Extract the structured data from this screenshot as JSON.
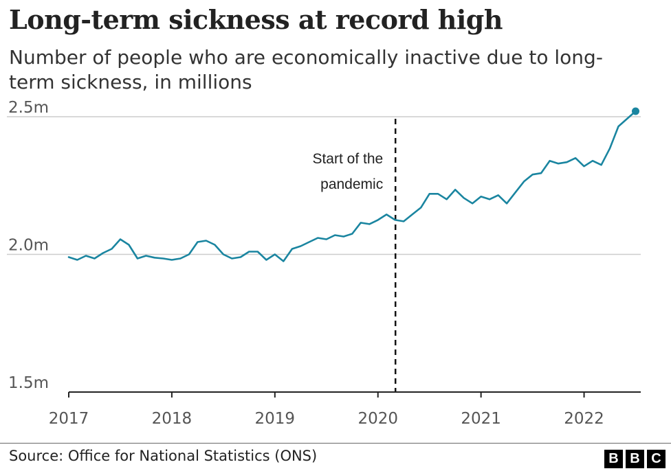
{
  "header": {
    "title": "Long-term sickness at record high",
    "subtitle": "Number of people who are economically inactive due to long-term sickness, in millions"
  },
  "footer": {
    "source": "Source: Office for National Statistics (ONS)",
    "logo_letters": [
      "B",
      "B",
      "C"
    ]
  },
  "colors": {
    "line": "#1a85a0",
    "grid": "#cccccc",
    "axis": "#222222",
    "annotation_line": "#111111"
  },
  "chart_data": {
    "type": "line",
    "title": "Long-term sickness at record high",
    "xlabel": "",
    "ylabel": "",
    "xlim": [
      2017,
      2022.55
    ],
    "ylim": [
      1.5,
      2.55
    ],
    "yticks": [
      {
        "value": 1.5,
        "label": "1.5m"
      },
      {
        "value": 2.0,
        "label": "2.0m"
      },
      {
        "value": 2.5,
        "label": "2.5m"
      }
    ],
    "xticks": [
      {
        "value": 2017,
        "label": "2017"
      },
      {
        "value": 2018,
        "label": "2018"
      },
      {
        "value": 2019,
        "label": "2019"
      },
      {
        "value": 2020,
        "label": "2020"
      },
      {
        "value": 2021,
        "label": "2021"
      },
      {
        "value": 2022,
        "label": "2022"
      }
    ],
    "annotation": {
      "x": 2020.17,
      "lines": [
        "Start of the",
        "pandemic"
      ]
    },
    "series": [
      {
        "name": "Economically inactive due to long-term sickness (millions)",
        "end_marker": true,
        "x": [
          2017.0,
          2017.083,
          2017.167,
          2017.25,
          2017.333,
          2017.417,
          2017.5,
          2017.583,
          2017.667,
          2017.75,
          2017.833,
          2017.917,
          2018.0,
          2018.083,
          2018.167,
          2018.25,
          2018.333,
          2018.417,
          2018.5,
          2018.583,
          2018.667,
          2018.75,
          2018.833,
          2018.917,
          2019.0,
          2019.083,
          2019.167,
          2019.25,
          2019.333,
          2019.417,
          2019.5,
          2019.583,
          2019.667,
          2019.75,
          2019.833,
          2019.917,
          2020.0,
          2020.083,
          2020.167,
          2020.25,
          2020.333,
          2020.417,
          2020.5,
          2020.583,
          2020.667,
          2020.75,
          2020.833,
          2020.917,
          2021.0,
          2021.083,
          2021.167,
          2021.25,
          2021.333,
          2021.417,
          2021.5,
          2021.583,
          2021.667,
          2021.75,
          2021.833,
          2021.917,
          2022.0,
          2022.083,
          2022.167,
          2022.25,
          2022.333,
          2022.5
        ],
        "values": [
          1.99,
          1.98,
          1.995,
          1.985,
          2.005,
          2.02,
          2.055,
          2.035,
          1.985,
          1.995,
          1.988,
          1.985,
          1.98,
          1.985,
          2.0,
          2.045,
          2.05,
          2.035,
          2.0,
          1.985,
          1.99,
          2.01,
          2.01,
          1.98,
          2.0,
          1.975,
          2.02,
          2.03,
          2.045,
          2.06,
          2.055,
          2.07,
          2.065,
          2.075,
          2.115,
          2.11,
          2.125,
          2.145,
          2.125,
          2.12,
          2.145,
          2.17,
          2.22,
          2.22,
          2.2,
          2.235,
          2.205,
          2.185,
          2.21,
          2.2,
          2.215,
          2.185,
          2.225,
          2.265,
          2.29,
          2.295,
          2.34,
          2.33,
          2.335,
          2.35,
          2.32,
          2.34,
          2.325,
          2.385,
          2.465,
          2.52
        ]
      }
    ]
  }
}
